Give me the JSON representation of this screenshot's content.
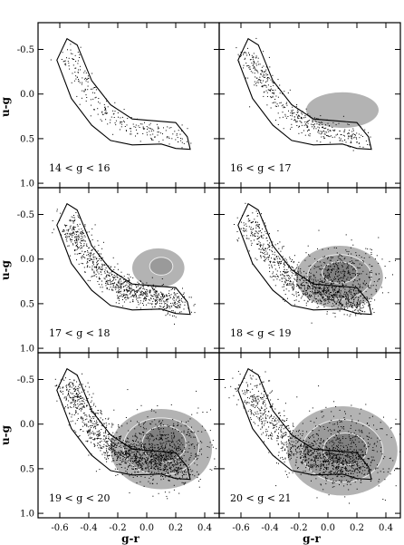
{
  "chart_data": {
    "type": "scatter",
    "layout": "3x2 grid of panels sharing axes",
    "xlabel": "g-r",
    "ylabel": "u-g",
    "xlim": [
      -0.75,
      0.5
    ],
    "ylim": [
      1.05,
      -0.8
    ],
    "y_inverted": true,
    "xticks": [
      -0.6,
      -0.4,
      -0.2,
      0.0,
      0.2,
      0.4
    ],
    "xtick_labels": [
      "-0.6",
      "-0.4",
      "-0.2",
      "0.0",
      "0.2",
      "0.4"
    ],
    "yticks": [
      -0.5,
      0.0,
      0.5,
      1.0
    ],
    "ytick_labels": [
      "-0.5",
      "0.0",
      "0.5",
      "1.0"
    ],
    "grid": false,
    "colors": {
      "points": "#000000",
      "density_levels": [
        "#b3b3b3",
        "#9a9a9a",
        "#808080"
      ],
      "contour_line": "#ececec",
      "selection_box": "#000000"
    },
    "selection_box": {
      "description": "closed selection region in the (g-r, u-g) color-color plane",
      "vertices": [
        [
          -0.62,
          -0.38
        ],
        [
          -0.55,
          -0.62
        ],
        [
          -0.48,
          -0.55
        ],
        [
          -0.38,
          -0.15
        ],
        [
          -0.25,
          0.12
        ],
        [
          -0.1,
          0.28
        ],
        [
          0.05,
          0.3
        ],
        [
          0.2,
          0.32
        ],
        [
          0.28,
          0.48
        ],
        [
          0.3,
          0.62
        ],
        [
          0.2,
          0.61
        ],
        [
          0.1,
          0.56
        ],
        [
          -0.1,
          0.57
        ],
        [
          -0.25,
          0.52
        ],
        [
          -0.38,
          0.35
        ],
        [
          -0.52,
          0.05
        ]
      ]
    },
    "panels": [
      {
        "label": "14 < g < 16",
        "n_points": 250,
        "density": []
      },
      {
        "label": "16 < g < 17",
        "n_points": 450,
        "density": [
          {
            "cx": 0.1,
            "cy": 0.18,
            "rx": 0.25,
            "ry": 0.2,
            "level": 0
          }
        ]
      },
      {
        "label": "17 < g < 18",
        "n_points": 900,
        "density": [
          {
            "cx": 0.08,
            "cy": 0.1,
            "rx": 0.18,
            "ry": 0.22,
            "level": 0
          },
          {
            "cx": 0.1,
            "cy": 0.08,
            "rx": 0.08,
            "ry": 0.1,
            "level": 1
          }
        ]
      },
      {
        "label": "18 < g < 19",
        "n_points": 1300,
        "density": [
          {
            "cx": 0.08,
            "cy": 0.2,
            "rx": 0.3,
            "ry": 0.35,
            "level": 0
          },
          {
            "cx": 0.08,
            "cy": 0.2,
            "rx": 0.22,
            "ry": 0.25,
            "level": 1
          },
          {
            "cx": 0.08,
            "cy": 0.15,
            "rx": 0.12,
            "ry": 0.12,
            "level": 2
          }
        ]
      },
      {
        "label": "19 < g < 20",
        "n_points": 1700,
        "density": [
          {
            "cx": 0.1,
            "cy": 0.28,
            "rx": 0.35,
            "ry": 0.45,
            "level": 0
          },
          {
            "cx": 0.1,
            "cy": 0.25,
            "rx": 0.26,
            "ry": 0.32,
            "level": 1
          },
          {
            "cx": 0.12,
            "cy": 0.22,
            "rx": 0.15,
            "ry": 0.2,
            "level": 2
          }
        ]
      },
      {
        "label": "20 < g < 21",
        "n_points": 1400,
        "density": [
          {
            "cx": 0.1,
            "cy": 0.3,
            "rx": 0.38,
            "ry": 0.5,
            "level": 0
          },
          {
            "cx": 0.1,
            "cy": 0.3,
            "rx": 0.28,
            "ry": 0.35,
            "level": 1
          },
          {
            "cx": 0.12,
            "cy": 0.28,
            "rx": 0.15,
            "ry": 0.18,
            "level": 2
          }
        ]
      }
    ]
  }
}
